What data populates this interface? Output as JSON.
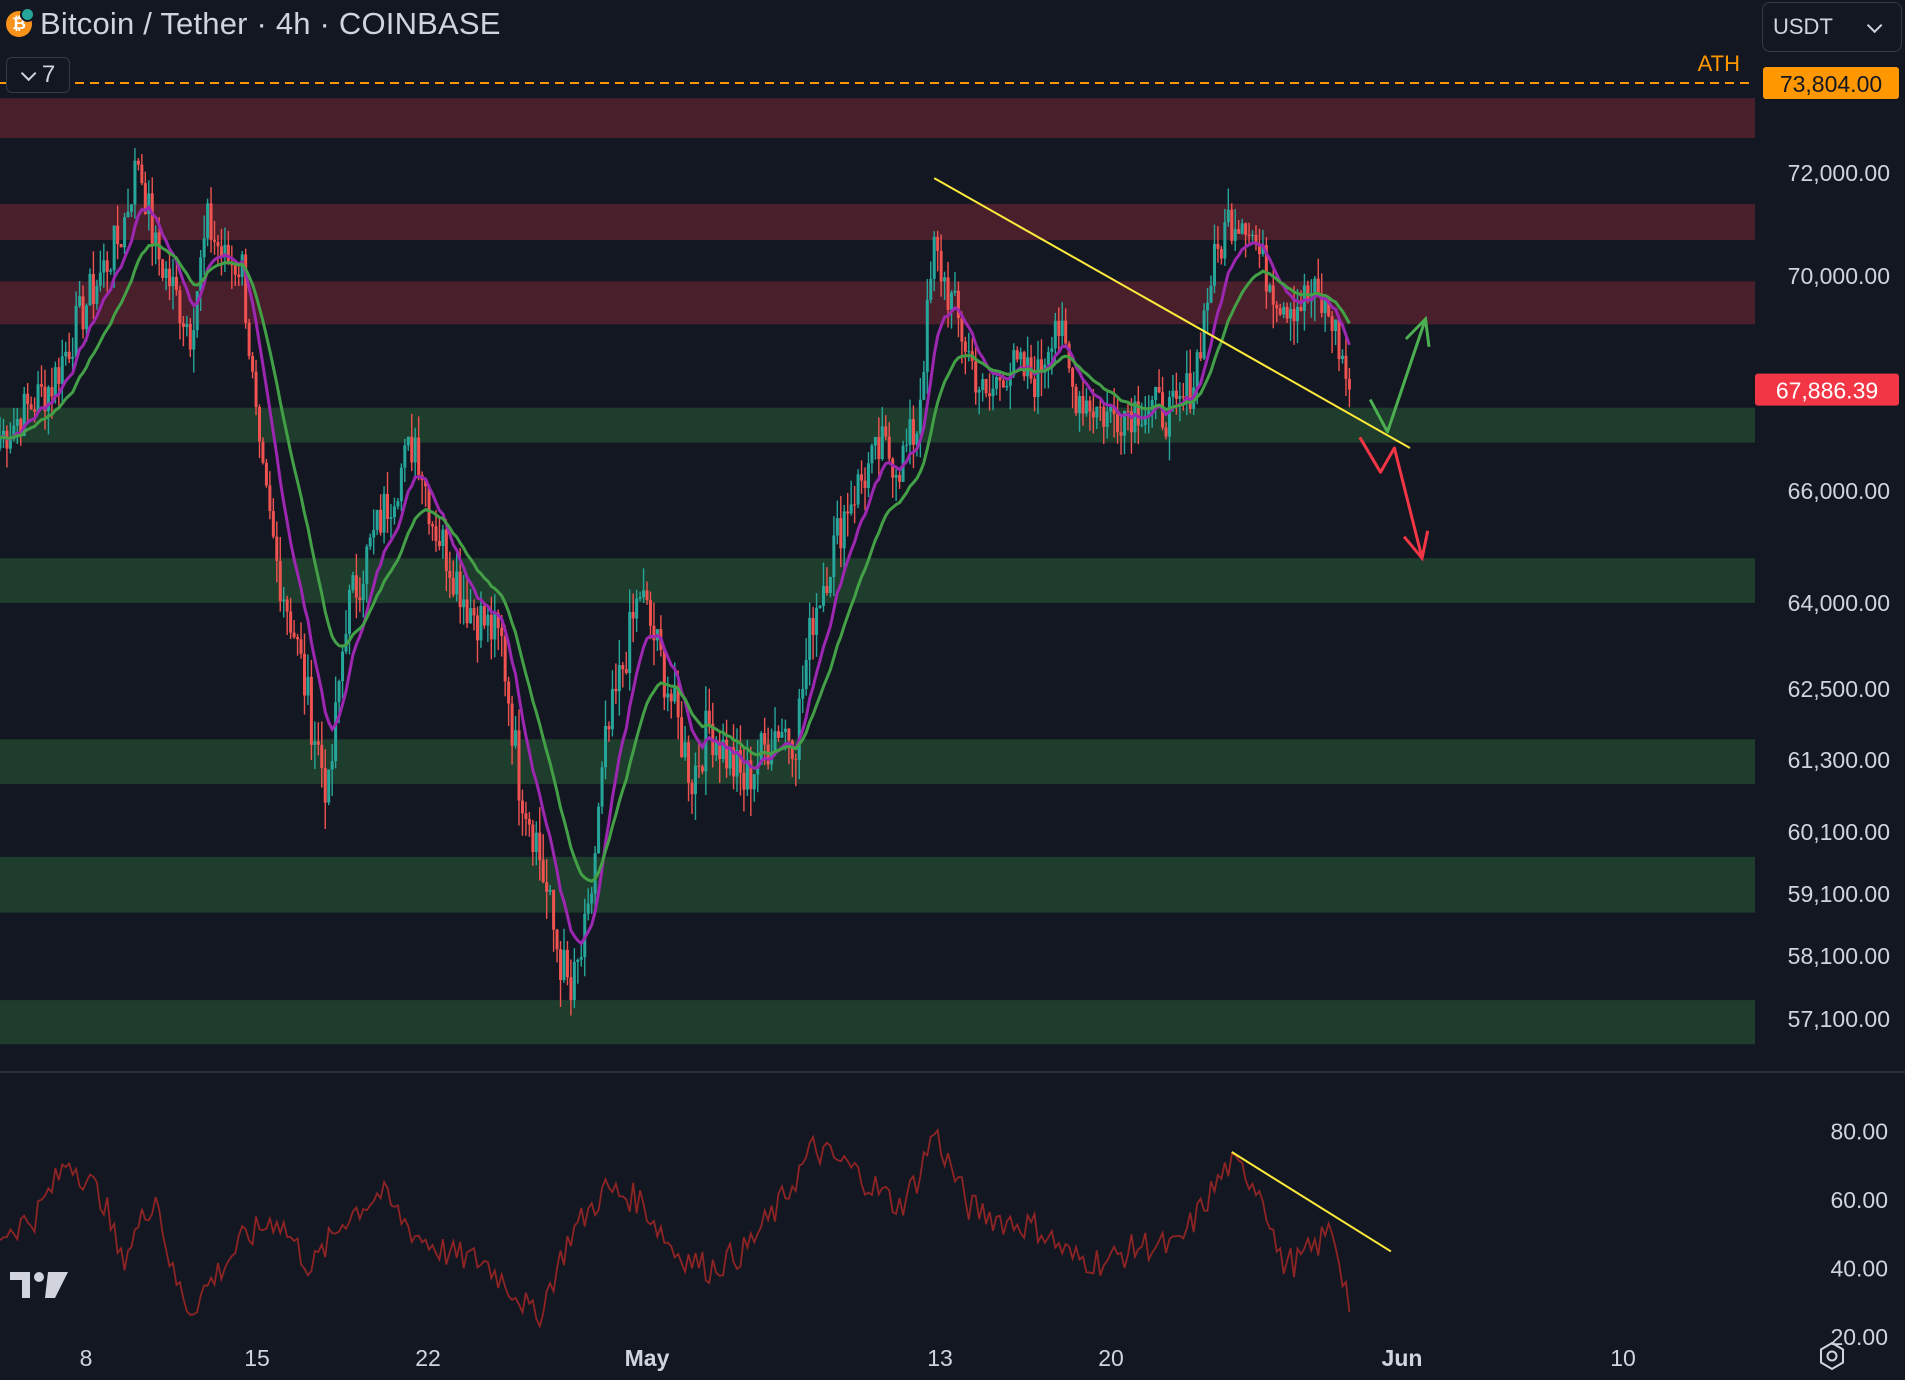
{
  "header": {
    "title": "Bitcoin / Tether · 4h · COINBASE",
    "coin_icon": "bitcoin-icon",
    "coin_glyph": "₿",
    "indicator_count": "7",
    "currency": "USDT"
  },
  "colors": {
    "background": "#131722",
    "resistance_zone": "#4a1f2c",
    "support_zone": "#1f3d2c",
    "candle_up": "#26a69a",
    "candle_down": "#ef5350",
    "ma_fast": "#9c27b0",
    "ma_slow": "#43a047",
    "trendline": "#ffeb3b",
    "ath_line": "#ff9800",
    "rsi": "#8e2424",
    "arrow_up": "#4caf50",
    "arrow_down": "#f23645"
  },
  "chart_data": [
    {
      "type": "candlestick",
      "symbol": "Bitcoin / Tether",
      "interval": "4h",
      "exchange": "COINBASE",
      "y_axis_labels": [
        "72,000.00",
        "70,000.00",
        "66,000.00",
        "64,000.00",
        "62,500.00",
        "61,300.00",
        "60,100.00",
        "59,100.00",
        "58,100.00",
        "57,100.00"
      ],
      "x_axis_labels": [
        "8",
        "15",
        "22",
        "May",
        "13",
        "20",
        "Jun",
        "10"
      ],
      "ath": {
        "label": "ATH",
        "value": 73804,
        "value_label": "73,804.00"
      },
      "last_price": {
        "value": 67886.39,
        "label": "67,886.39"
      },
      "resistance_zones": [
        [
          72700,
          73500
        ],
        [
          70700,
          71400
        ],
        [
          69100,
          69900
        ]
      ],
      "support_zones": [
        [
          66900,
          67550
        ],
        [
          64000,
          64800
        ],
        [
          60900,
          61650
        ],
        [
          58800,
          59700
        ],
        [
          56700,
          57400
        ]
      ],
      "close_path": [
        {
          "t": 0,
          "v": 67000
        },
        {
          "t": 3,
          "v": 68000
        },
        {
          "t": 5,
          "v": 69500
        },
        {
          "t": 7,
          "v": 70800
        },
        {
          "t": 8,
          "v": 72300
        },
        {
          "t": 9,
          "v": 70500
        },
        {
          "t": 11,
          "v": 69000
        },
        {
          "t": 12,
          "v": 71000
        },
        {
          "t": 13,
          "v": 70300
        },
        {
          "t": 14,
          "v": 70200
        },
        {
          "t": 15,
          "v": 66500
        },
        {
          "t": 16,
          "v": 64700
        },
        {
          "t": 17,
          "v": 63500
        },
        {
          "t": 18,
          "v": 62000
        },
        {
          "t": 19,
          "v": 60700
        },
        {
          "t": 20,
          "v": 63800
        },
        {
          "t": 22,
          "v": 65500
        },
        {
          "t": 24,
          "v": 67000
        },
        {
          "t": 25,
          "v": 65500
        },
        {
          "t": 27,
          "v": 64000
        },
        {
          "t": 29,
          "v": 63300
        },
        {
          "t": 30,
          "v": 61000
        },
        {
          "t": 31,
          "v": 60000
        },
        {
          "t": 32,
          "v": 58500
        },
        {
          "t": 33,
          "v": 57400
        },
        {
          "t": 34,
          "v": 58600
        },
        {
          "t": 35,
          "v": 61500
        },
        {
          "t": 36,
          "v": 62900
        },
        {
          "t": 37,
          "v": 64200
        },
        {
          "t": 38,
          "v": 63200
        },
        {
          "t": 40,
          "v": 61000
        },
        {
          "t": 41,
          "v": 61900
        },
        {
          "t": 43,
          "v": 60900
        },
        {
          "t": 45,
          "v": 61900
        },
        {
          "t": 46,
          "v": 61700
        },
        {
          "t": 47,
          "v": 63800
        },
        {
          "t": 49,
          "v": 65800
        },
        {
          "t": 51,
          "v": 66800
        },
        {
          "t": 52,
          "v": 66500
        },
        {
          "t": 53,
          "v": 67200
        },
        {
          "t": 54,
          "v": 70500
        },
        {
          "t": 55,
          "v": 69500
        },
        {
          "t": 57,
          "v": 67600
        },
        {
          "t": 58,
          "v": 68300
        },
        {
          "t": 60,
          "v": 68100
        },
        {
          "t": 61,
          "v": 69300
        },
        {
          "t": 62,
          "v": 67900
        },
        {
          "t": 64,
          "v": 67400
        },
        {
          "t": 66,
          "v": 67600
        },
        {
          "t": 68,
          "v": 67400
        },
        {
          "t": 69,
          "v": 68100
        },
        {
          "t": 70,
          "v": 70000
        },
        {
          "t": 71,
          "v": 71100
        },
        {
          "t": 72,
          "v": 71200
        },
        {
          "t": 73,
          "v": 70200
        },
        {
          "t": 74,
          "v": 69600
        },
        {
          "t": 75,
          "v": 69500
        },
        {
          "t": 76,
          "v": 69600
        },
        {
          "t": 77,
          "v": 69200
        },
        {
          "t": 78,
          "v": 67886
        }
      ],
      "moving_averages": [
        "fast",
        "slow"
      ],
      "trendline": [
        {
          "t": 54,
          "v": 71900
        },
        {
          "t": 81.5,
          "v": 66800
        }
      ],
      "scenario_up": [
        {
          "t": 79.2,
          "v": 67700
        },
        {
          "t": 80.2,
          "v": 67100
        },
        {
          "t": 82.4,
          "v": 69200
        }
      ],
      "scenario_down": [
        {
          "t": 78.6,
          "v": 67000
        },
        {
          "t": 79.8,
          "v": 66350
        },
        {
          "t": 80.6,
          "v": 66800
        },
        {
          "t": 82.2,
          "v": 64800
        }
      ]
    },
    {
      "type": "line",
      "indicator": "oscillator",
      "y_axis_labels": [
        "80.00",
        "60.00",
        "40.00",
        "20.00"
      ],
      "ylim": [
        18,
        88
      ],
      "path": [
        {
          "t": 0,
          "v": 50
        },
        {
          "t": 2,
          "v": 55
        },
        {
          "t": 4,
          "v": 72
        },
        {
          "t": 6,
          "v": 60
        },
        {
          "t": 7,
          "v": 42
        },
        {
          "t": 9,
          "v": 62
        },
        {
          "t": 10,
          "v": 38
        },
        {
          "t": 11,
          "v": 28
        },
        {
          "t": 12,
          "v": 35
        },
        {
          "t": 14,
          "v": 48
        },
        {
          "t": 16,
          "v": 55
        },
        {
          "t": 18,
          "v": 40
        },
        {
          "t": 20,
          "v": 55
        },
        {
          "t": 22,
          "v": 62
        },
        {
          "t": 24,
          "v": 50
        },
        {
          "t": 26,
          "v": 44
        },
        {
          "t": 28,
          "v": 42
        },
        {
          "t": 30,
          "v": 32
        },
        {
          "t": 31,
          "v": 25
        },
        {
          "t": 33,
          "v": 50
        },
        {
          "t": 35,
          "v": 63
        },
        {
          "t": 37,
          "v": 60
        },
        {
          "t": 39,
          "v": 45
        },
        {
          "t": 41,
          "v": 40
        },
        {
          "t": 43,
          "v": 45
        },
        {
          "t": 45,
          "v": 58
        },
        {
          "t": 47,
          "v": 75
        },
        {
          "t": 49,
          "v": 70
        },
        {
          "t": 51,
          "v": 62
        },
        {
          "t": 52,
          "v": 58
        },
        {
          "t": 53,
          "v": 66
        },
        {
          "t": 54,
          "v": 80
        },
        {
          "t": 56,
          "v": 58
        },
        {
          "t": 58,
          "v": 54
        },
        {
          "t": 60,
          "v": 52
        },
        {
          "t": 62,
          "v": 43
        },
        {
          "t": 64,
          "v": 42
        },
        {
          "t": 66,
          "v": 47
        },
        {
          "t": 68,
          "v": 46
        },
        {
          "t": 70,
          "v": 62
        },
        {
          "t": 71,
          "v": 70
        },
        {
          "t": 72,
          "v": 68
        },
        {
          "t": 73,
          "v": 62
        },
        {
          "t": 74,
          "v": 42
        },
        {
          "t": 75,
          "v": 42
        },
        {
          "t": 76,
          "v": 46
        },
        {
          "t": 77,
          "v": 52
        },
        {
          "t": 78,
          "v": 30
        }
      ],
      "trendline": [
        {
          "t": 71.2,
          "v": 74
        },
        {
          "t": 80.4,
          "v": 45
        }
      ]
    }
  ]
}
